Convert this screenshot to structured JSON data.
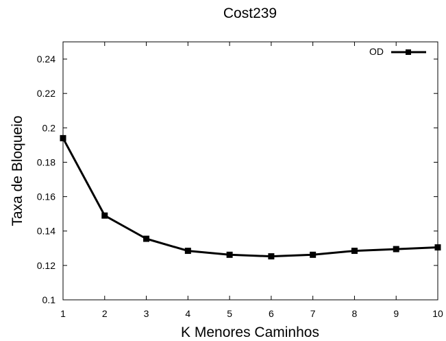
{
  "chart_data": {
    "type": "line",
    "title": "Cost239",
    "xlabel": "K Menores Caminhos",
    "ylabel": "Taxa de Bloqueio",
    "xlim": [
      1,
      10
    ],
    "ylim": [
      0.1,
      0.25
    ],
    "x_ticks": [
      "1",
      "2",
      "3",
      "4",
      "5",
      "6",
      "7",
      "8",
      "9",
      "10"
    ],
    "y_ticks": [
      "0.1",
      "0.12",
      "0.14",
      "0.16",
      "0.18",
      "0.2",
      "0.22",
      "0.24"
    ],
    "grid": false,
    "legend_position": "top-right",
    "series": [
      {
        "name": "OD",
        "color": "#000000",
        "marker": "square",
        "x": [
          1,
          2,
          3,
          4,
          5,
          6,
          7,
          8,
          9,
          10
        ],
        "values": [
          0.194,
          0.149,
          0.1355,
          0.1285,
          0.1262,
          0.1253,
          0.1262,
          0.1285,
          0.1295,
          0.1305
        ]
      }
    ]
  }
}
